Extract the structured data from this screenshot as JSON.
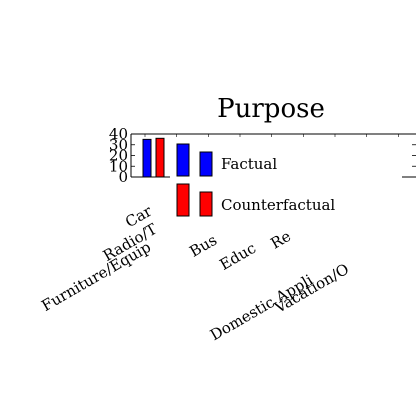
{
  "chart_data": {
    "type": "bar",
    "title": "Purpose",
    "xlabel": "",
    "ylabel": "",
    "categories": [
      "Car",
      "Radio/TV",
      "Furniture/Equipment",
      "Business",
      "Education",
      "Repairs",
      "Domestic Appliances",
      "Vacation/Others"
    ],
    "category_labels_visible": [
      "Car",
      "Radio/T",
      "Furniture/Equip",
      "Bus",
      "Educ",
      "Re",
      "Domestic Appli",
      "Vacation/O"
    ],
    "series": [
      {
        "name": "Factual",
        "color": "#0000ff",
        "values": [
          35,
          null,
          null,
          null,
          null,
          null,
          null,
          null
        ]
      },
      {
        "name": "Counterfactual",
        "color": "#ff0000",
        "values": [
          36,
          null,
          null,
          null,
          null,
          null,
          null,
          null
        ]
      }
    ],
    "ylim": [
      0,
      40
    ],
    "yticks": [
      0,
      10,
      20,
      30,
      40
    ],
    "grid": false,
    "legend_position": "inside-center"
  }
}
